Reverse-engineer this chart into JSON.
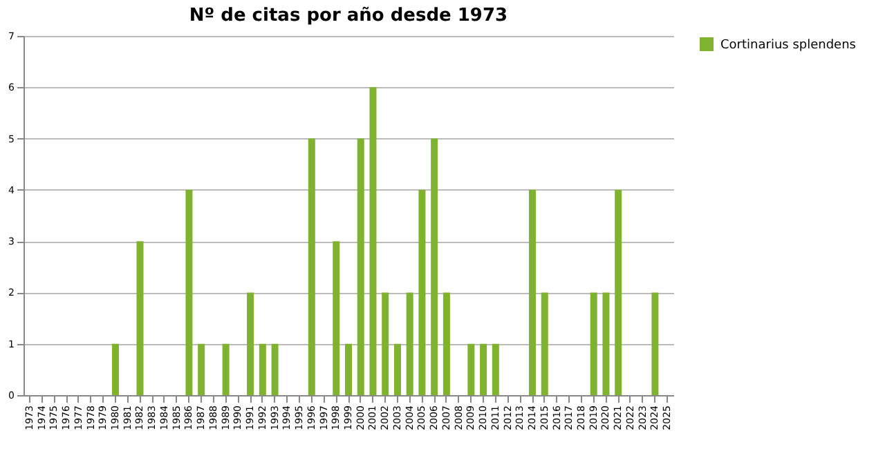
{
  "chart_data": {
    "type": "bar",
    "title": "Nº de citas por año desde 1973",
    "categories": [
      "1973",
      "1974",
      "1975",
      "1976",
      "1977",
      "1978",
      "1979",
      "1980",
      "1981",
      "1982",
      "1983",
      "1984",
      "1985",
      "1986",
      "1987",
      "1988",
      "1989",
      "1990",
      "1991",
      "1992",
      "1993",
      "1994",
      "1995",
      "1996",
      "1997",
      "1998",
      "1999",
      "2000",
      "2001",
      "2002",
      "2003",
      "2004",
      "2005",
      "2006",
      "2007",
      "2008",
      "2009",
      "2010",
      "2011",
      "2012",
      "2013",
      "2014",
      "2015",
      "2016",
      "2017",
      "2018",
      "2019",
      "2020",
      "2021",
      "2022",
      "2023",
      "2024",
      "2025"
    ],
    "series": [
      {
        "name": "Cortinarius splendens",
        "color": "#7fb22e",
        "values": [
          0,
          0,
          0,
          0,
          0,
          0,
          0,
          1,
          0,
          3,
          0,
          0,
          0,
          4,
          1,
          0,
          1,
          0,
          2,
          1,
          1,
          0,
          0,
          5,
          0,
          3,
          1,
          5,
          6,
          2,
          1,
          2,
          4,
          5,
          2,
          0,
          1,
          1,
          1,
          0,
          0,
          4,
          2,
          0,
          0,
          0,
          2,
          2,
          4,
          0,
          0,
          2,
          0
        ]
      }
    ],
    "ylim": [
      0,
      7
    ],
    "yticks": [
      0,
      1,
      2,
      3,
      4,
      5,
      6,
      7
    ],
    "grid": "y",
    "legend": "right"
  }
}
